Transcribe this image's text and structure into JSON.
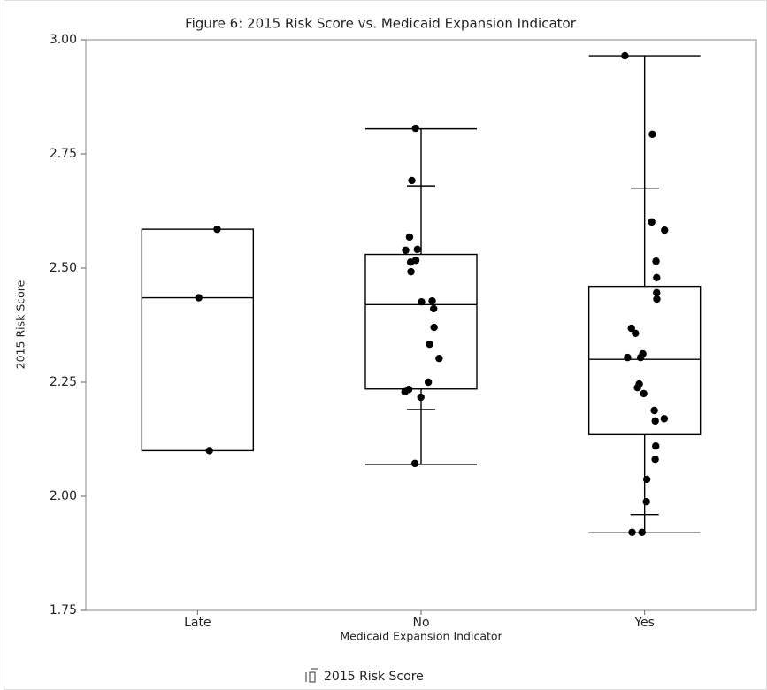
{
  "chart_data": {
    "type": "box",
    "title": "Figure 6: 2015 Risk Score vs. Medicaid Expansion Indicator",
    "x_label": "Medicaid Expansion Indicator",
    "y_label": "2015 Risk Score",
    "categories": [
      "Late",
      "No",
      "Yes"
    ],
    "ylim": [
      1.75,
      3.0
    ],
    "yticks": [
      {
        "value": 1.75,
        "label": "1.75"
      },
      {
        "value": 2,
        "label": "2.00"
      },
      {
        "value": 2.25,
        "label": "2.25"
      },
      {
        "value": 2.5,
        "label": "2.50"
      },
      {
        "value": 2.75,
        "label": "2.75"
      },
      {
        "value": 3,
        "label": "3.00"
      }
    ],
    "legend": "bottom",
    "series": [
      {
        "name": "2015 Risk Score",
        "color": "#000000",
        "boxes": [
          {
            "q1": 2.1,
            "median": 2.435,
            "q3": 2.585,
            "points": [
              2.585,
              2.435,
              2.1
            ]
          },
          {
            "whisker_low": 2.07,
            "q1": 2.235,
            "median": 2.42,
            "q3": 2.53,
            "whisker_high": 2.805,
            "p10": 2.19,
            "p90": 2.68,
            "points": [
              2.806,
              2.692,
              2.568,
              2.539,
              2.541,
              2.517,
              2.513,
              2.492,
              2.428,
              2.426,
              2.411,
              2.37,
              2.333,
              2.302,
              2.25,
              2.234,
              2.229,
              2.217,
              2.072
            ]
          },
          {
            "whisker_low": 1.92,
            "q1": 2.135,
            "median": 2.3,
            "q3": 2.46,
            "whisker_high": 2.965,
            "p10": 1.96,
            "p90": 2.675,
            "points": [
              2.965,
              2.793,
              2.601,
              2.583,
              2.515,
              2.479,
              2.446,
              2.432,
              2.357,
              2.368,
              2.312,
              2.304,
              2.304,
              2.246,
              2.238,
              2.225,
              2.188,
              2.17,
              2.165,
              2.11,
              2.081,
              2.037,
              1.988,
              1.921,
              1.921
            ]
          }
        ]
      }
    ]
  }
}
